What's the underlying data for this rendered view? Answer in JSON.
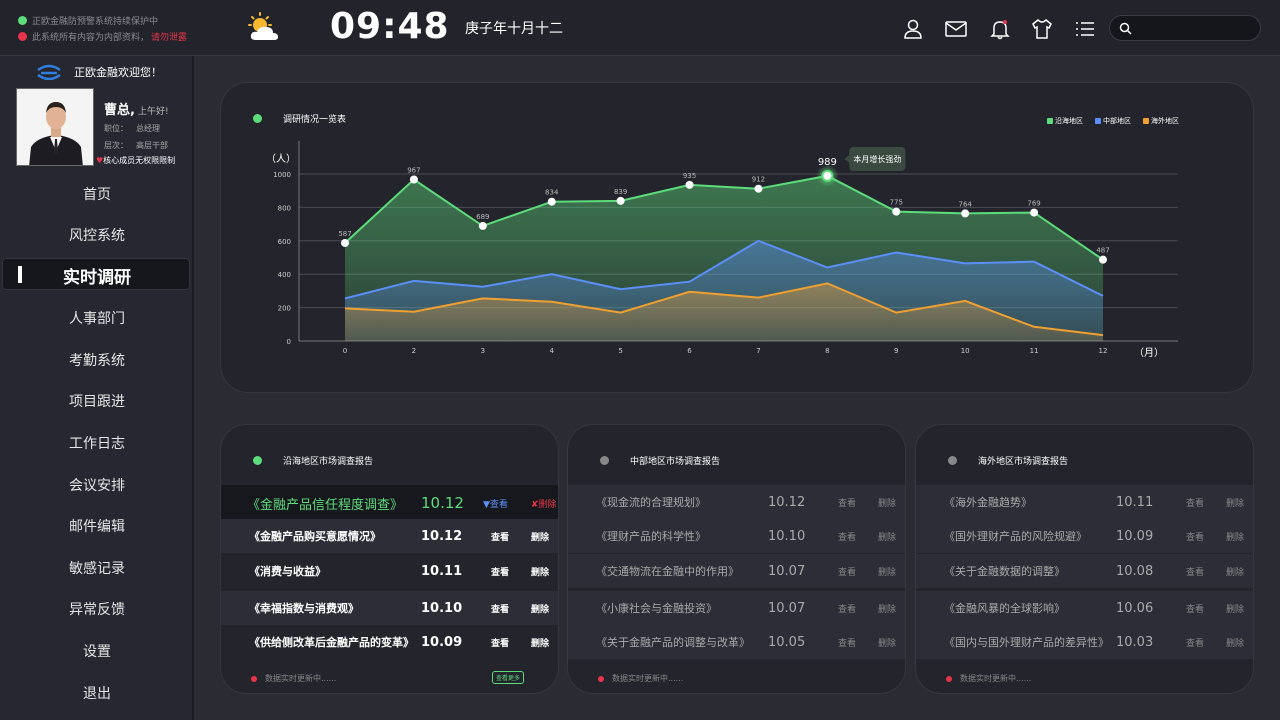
{
  "top": {
    "alert1": "正欧金融防预警系统持续保护中",
    "alert2": "此系统所有内容为内部资料，",
    "alert2_warn": "请勿泄露",
    "time": "09:48",
    "lunar_date": "庚子年十月十二",
    "weather_icon": "partly-cloudy-icon"
  },
  "sidebar": {
    "welcome": "正欧金融欢迎您！",
    "user_name": "曹总,",
    "greeting": "上午好!",
    "position_label": "职位：",
    "position": "总经理",
    "level_label": "层次：",
    "level": "高层干部",
    "permission_mark": "♥",
    "permission": "核心成员无权限限制",
    "nav": [
      "首页",
      "风控系统",
      "实时调研",
      "人事部门",
      "考勤系统",
      "项目跟进",
      "工作日志",
      "会议安排",
      "邮件编辑",
      "敏感记录",
      "异常反馈",
      "设置",
      "退出"
    ],
    "active_index": 2
  },
  "chart_card": {
    "title": "调研情况一览表",
    "tooltip": "本月增长强劲"
  },
  "chart_data": {
    "type": "area",
    "x": [
      "0",
      "2",
      "3",
      "4",
      "5",
      "6",
      "7",
      "8",
      "9",
      "10",
      "11",
      "12"
    ],
    "xlabel": "（月）",
    "ylabel": "（人）",
    "yticks": [
      "0",
      "200",
      "400",
      "600",
      "800",
      "1000"
    ],
    "ylim": [
      0,
      1000
    ],
    "legend_position": "top-right",
    "series": [
      {
        "name": "沿海地区",
        "color": "#5ddc7c",
        "values": [
          587,
          967,
          689,
          834,
          839,
          935,
          912,
          989,
          775,
          764,
          769,
          487
        ]
      },
      {
        "name": "中部地区",
        "color": "#5b8ff9",
        "values": [
          255,
          360,
          325,
          400,
          310,
          355,
          600,
          440,
          530,
          465,
          475,
          270
        ]
      },
      {
        "name": "海外地区",
        "color": "#f0a030",
        "values": [
          195,
          175,
          255,
          235,
          170,
          295,
          260,
          345,
          170,
          240,
          85,
          35
        ]
      }
    ]
  },
  "reports": [
    {
      "title": "沿海地区市场调查报告",
      "dot_color": "#5ddc7c",
      "rows": [
        {
          "title": "《金融产品信任程度调查》",
          "date": "10.12",
          "view": "▼查看",
          "del": "✘删除"
        },
        {
          "title": "《金融产品购买意愿情况》",
          "date": "10.12",
          "view": "查看",
          "del": "删除"
        },
        {
          "title": "《消费与收益》",
          "date": "10.11",
          "view": "查看",
          "del": "删除"
        },
        {
          "title": "《幸福指数与消费观》",
          "date": "10.10",
          "view": "查看",
          "del": "删除"
        },
        {
          "title": "《供给侧改革后金融产品的变革》",
          "date": "10.09",
          "view": "查看",
          "del": "删除"
        }
      ],
      "footer": "数据实时更新中......",
      "more": "查看更多"
    },
    {
      "title": "中部地区市场调查报告",
      "dot_color": "#888888",
      "rows": [
        {
          "title": "《现金流的合理规划》",
          "date": "10.12",
          "view": "查看",
          "del": "删除"
        },
        {
          "title": "《理财产品的科学性》",
          "date": "10.10",
          "view": "查看",
          "del": "删除"
        },
        {
          "title": "《交通物流在金融中的作用》",
          "date": "10.07",
          "view": "查看",
          "del": "删除"
        },
        {
          "title": "《小康社会与金融投资》",
          "date": "10.07",
          "view": "查看",
          "del": "删除"
        },
        {
          "title": "《关于金融产品的调整与改革》",
          "date": "10.05",
          "view": "查看",
          "del": "删除"
        }
      ],
      "footer": "数据实时更新中......"
    },
    {
      "title": "海外地区市场调查报告",
      "dot_color": "#888888",
      "rows": [
        {
          "title": "《海外金融趋势》",
          "date": "10.11",
          "view": "查看",
          "del": "删除"
        },
        {
          "title": "《国外理财产品的风险规避》",
          "date": "10.09",
          "view": "查看",
          "del": "删除"
        },
        {
          "title": "《关于金融数据的调整》",
          "date": "10.08",
          "view": "查看",
          "del": "删除"
        },
        {
          "title": "《金融风暴的全球影响》",
          "date": "10.06",
          "view": "查看",
          "del": "删除"
        },
        {
          "title": "《国内与国外理财产品的差异性》",
          "date": "10.03",
          "view": "查看",
          "del": "删除"
        }
      ],
      "footer": "数据实时更新中......"
    }
  ]
}
